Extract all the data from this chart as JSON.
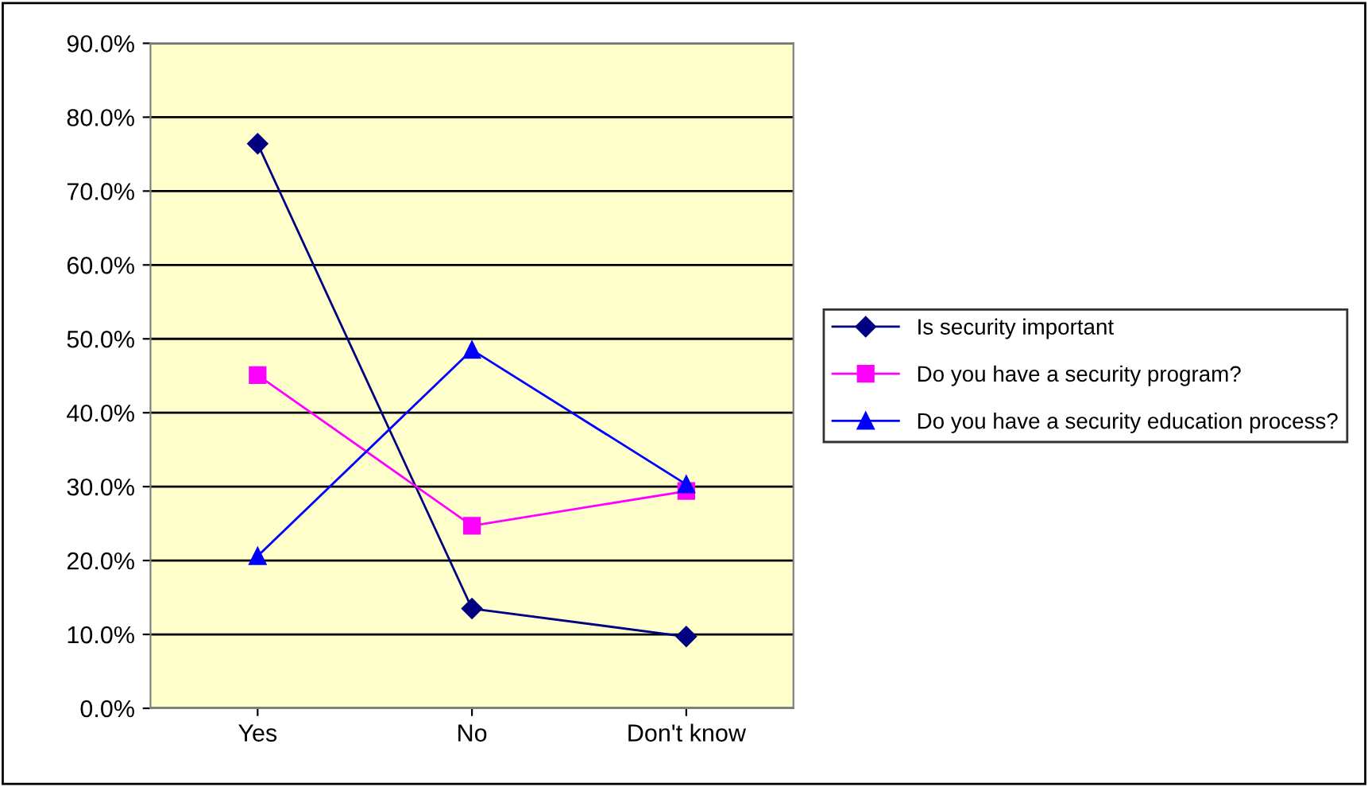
{
  "chart_data": {
    "type": "line",
    "categories": [
      "Yes",
      "No",
      "Don't know"
    ],
    "series": [
      {
        "name": "Is security important",
        "color": "#000080",
        "marker": "diamond",
        "values": [
          76.4,
          13.5,
          9.7
        ]
      },
      {
        "name": "Do you have a security program?",
        "color": "#ff00ff",
        "marker": "square",
        "values": [
          45.1,
          24.7,
          29.4
        ]
      },
      {
        "name": "Do you have a security education process?",
        "color": "#0000ff",
        "marker": "triangle",
        "values": [
          20.6,
          48.5,
          30.3
        ]
      }
    ],
    "ylim": [
      0,
      90
    ],
    "yticks": [
      {
        "value": 0,
        "label": "0.0%"
      },
      {
        "value": 10,
        "label": "10.0%"
      },
      {
        "value": 20,
        "label": "20.0%"
      },
      {
        "value": 30,
        "label": "30.0%"
      },
      {
        "value": 40,
        "label": "40.0%"
      },
      {
        "value": 50,
        "label": "50.0%"
      },
      {
        "value": 60,
        "label": "60.0%"
      },
      {
        "value": 70,
        "label": "70.0%"
      },
      {
        "value": 80,
        "label": "80.0%"
      },
      {
        "value": 90,
        "label": "90.0%"
      }
    ],
    "grid": "y",
    "legend": "right",
    "line_style": "solid"
  }
}
